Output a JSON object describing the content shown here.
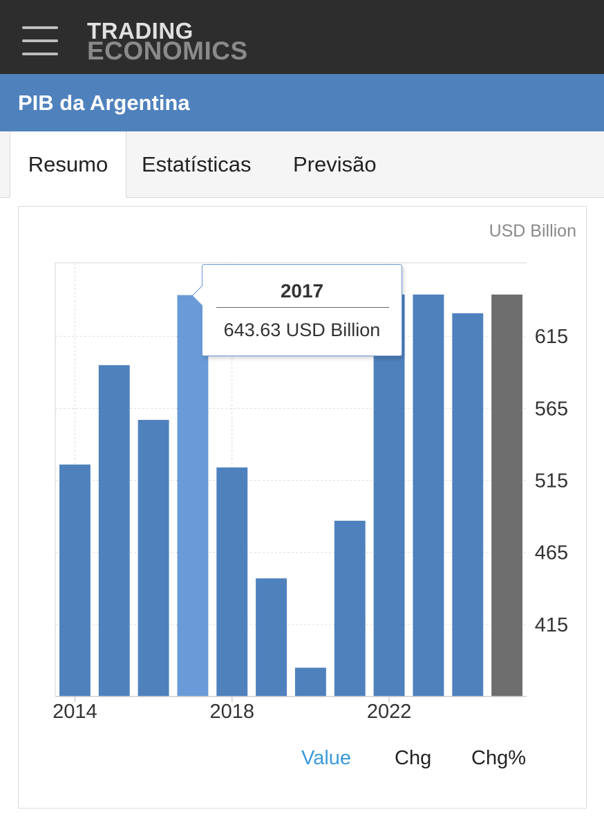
{
  "header": {
    "logo_line1": "TRADING",
    "logo_line2": "ECONOMICS"
  },
  "page_title": "PIB da Argentina",
  "tabs": [
    {
      "label": "Resumo",
      "active": true
    },
    {
      "label": "Estatísticas",
      "active": false
    },
    {
      "label": "Previsão",
      "active": false
    }
  ],
  "chart_data": {
    "type": "bar",
    "unit_label": "USD Billion",
    "categories": [
      "2014",
      "2015",
      "2016",
      "2017",
      "2018",
      "2019",
      "2020",
      "2021",
      "2022",
      "2023",
      "2024",
      "2025"
    ],
    "x_tick_labels": [
      "2014",
      "2018",
      "2022"
    ],
    "values": [
      526,
      595,
      557,
      643.63,
      524,
      447,
      385,
      487,
      644,
      644,
      631,
      644
    ],
    "highlighted_index": 3,
    "last_bar_forecast": true,
    "ylim": [
      365,
      666
    ],
    "y_ticks": [
      415,
      465,
      515,
      565,
      615
    ],
    "grid": true,
    "colors": {
      "bar": "#4f81bd",
      "highlight": "#6a9bd8",
      "forecast": "#6e6e6e"
    }
  },
  "tooltip": {
    "year": "2017",
    "value": "643.63 USD Billion"
  },
  "legend": [
    {
      "label": "Value",
      "active": true,
      "color": "#3a9ad9"
    },
    {
      "label": "Chg",
      "active": false,
      "color": "#222222"
    },
    {
      "label": "Chg%",
      "active": false,
      "color": "#222222"
    }
  ]
}
